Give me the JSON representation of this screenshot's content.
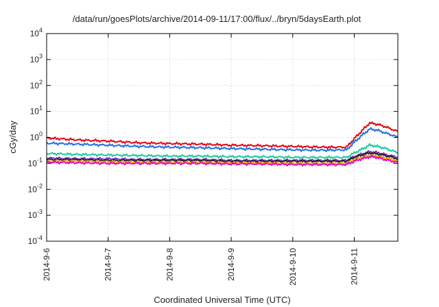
{
  "chart_data": {
    "type": "line",
    "title": "/data/run/goesPlots/archive/2014-09-11/17:00/flux/../bryn/5daysEarth.plot",
    "xlabel": "Coordinated Universal Time (UTC)",
    "ylabel": "cGy/day",
    "yscale": "log",
    "ylim": [
      0.0001,
      10000
    ],
    "xlim": [
      "2014-09-06 00:00",
      "2014-09-11 17:00"
    ],
    "grid": true,
    "y_ticks": [
      {
        "base": "10",
        "exp": "4"
      },
      {
        "base": "10",
        "exp": "3"
      },
      {
        "base": "10",
        "exp": "2"
      },
      {
        "base": "10",
        "exp": "1"
      },
      {
        "base": "10",
        "exp": "0"
      },
      {
        "base": "10",
        "exp": "-1"
      },
      {
        "base": "10",
        "exp": "-2"
      },
      {
        "base": "10",
        "exp": "-3"
      },
      {
        "base": "10",
        "exp": "-4"
      }
    ],
    "x_ticks": [
      "2014-9-6",
      "2014-9-7",
      "2014-9-8",
      "2014-9-9",
      "2014-9-10",
      "2014-9-11"
    ],
    "x": [
      "2014-09-06 00:00",
      "2014-09-06 12:00",
      "2014-09-07 00:00",
      "2014-09-07 12:00",
      "2014-09-08 00:00",
      "2014-09-08 12:00",
      "2014-09-09 00:00",
      "2014-09-09 12:00",
      "2014-09-10 00:00",
      "2014-09-10 12:00",
      "2014-09-10 21:00",
      "2014-09-11 00:00",
      "2014-09-11 03:00",
      "2014-09-11 06:00",
      "2014-09-11 09:00",
      "2014-09-11 12:00",
      "2014-09-11 15:00",
      "2014-09-11 17:00"
    ],
    "series": [
      {
        "color": "#e8000b",
        "values": [
          0.95,
          0.8,
          0.72,
          0.62,
          0.58,
          0.55,
          0.5,
          0.48,
          0.45,
          0.42,
          0.42,
          0.9,
          1.8,
          3.6,
          3.2,
          2.6,
          2.0,
          1.7
        ]
      },
      {
        "color": "#1a6fe8",
        "values": [
          0.6,
          0.55,
          0.5,
          0.45,
          0.42,
          0.4,
          0.37,
          0.35,
          0.33,
          0.32,
          0.33,
          0.65,
          1.2,
          2.1,
          1.9,
          1.5,
          1.2,
          1.0
        ]
      },
      {
        "color": "#1ec79a",
        "values": [
          0.24,
          0.22,
          0.21,
          0.2,
          0.19,
          0.19,
          0.18,
          0.18,
          0.17,
          0.17,
          0.17,
          0.25,
          0.35,
          0.5,
          0.45,
          0.38,
          0.3,
          0.26
        ]
      },
      {
        "color": "#7a2bd1",
        "values": [
          0.16,
          0.15,
          0.15,
          0.14,
          0.14,
          0.14,
          0.13,
          0.13,
          0.13,
          0.13,
          0.13,
          0.18,
          0.23,
          0.28,
          0.26,
          0.22,
          0.19,
          0.17
        ]
      },
      {
        "color": "#222222",
        "values": [
          0.14,
          0.14,
          0.13,
          0.13,
          0.13,
          0.13,
          0.12,
          0.12,
          0.12,
          0.12,
          0.12,
          0.17,
          0.21,
          0.25,
          0.23,
          0.2,
          0.17,
          0.15
        ]
      },
      {
        "color": "#f0a500",
        "values": [
          0.12,
          0.12,
          0.115,
          0.11,
          0.11,
          0.11,
          0.105,
          0.105,
          0.1,
          0.1,
          0.1,
          0.14,
          0.17,
          0.2,
          0.19,
          0.16,
          0.14,
          0.12
        ]
      },
      {
        "color": "#e800c8",
        "values": [
          0.11,
          0.105,
          0.1,
          0.1,
          0.1,
          0.1,
          0.095,
          0.095,
          0.09,
          0.09,
          0.09,
          0.12,
          0.15,
          0.18,
          0.17,
          0.14,
          0.12,
          0.11
        ]
      }
    ]
  }
}
